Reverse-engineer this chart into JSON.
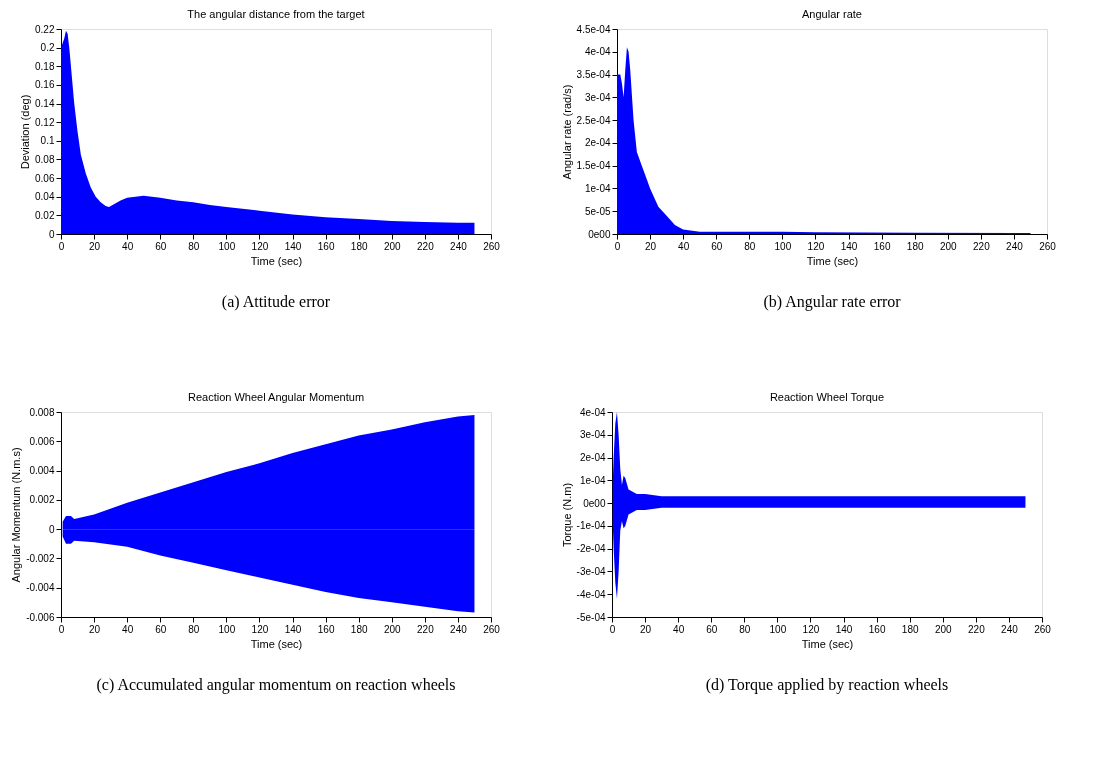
{
  "chart_data": [
    {
      "type": "area",
      "title": "The angular distance from the target",
      "xlabel": "Time (sec)",
      "ylabel": "Deviation (deg)",
      "annotations": [
        "(a) Attitude error"
      ],
      "xlim": [
        0,
        260
      ],
      "xticks": [
        0,
        20,
        40,
        60,
        80,
        100,
        120,
        140,
        160,
        180,
        200,
        220,
        240,
        260
      ],
      "ylim": [
        0,
        0.22
      ],
      "yticks": [
        0,
        0.02,
        0.04,
        0.06,
        0.08,
        0.1,
        0.12,
        0.14,
        0.16,
        0.18,
        0.2,
        0.22
      ],
      "grid": false,
      "series": [
        {
          "color": "#0000ff",
          "x": [
            0,
            1,
            2,
            3,
            4,
            5,
            6,
            8,
            10,
            12,
            15,
            18,
            21,
            24,
            27,
            29,
            32,
            36,
            40,
            45,
            50,
            55,
            60,
            70,
            80,
            90,
            100,
            120,
            140,
            160,
            180,
            200,
            220,
            240,
            250
          ],
          "values": [
            0.2,
            0.205,
            0.21,
            0.218,
            0.215,
            0.2,
            0.18,
            0.14,
            0.11,
            0.085,
            0.065,
            0.05,
            0.04,
            0.034,
            0.03,
            0.029,
            0.032,
            0.036,
            0.039,
            0.04,
            0.041,
            0.04,
            0.039,
            0.036,
            0.034,
            0.031,
            0.029,
            0.025,
            0.021,
            0.018,
            0.016,
            0.014,
            0.013,
            0.012,
            0.012
          ]
        }
      ]
    },
    {
      "type": "area",
      "title": "Angular rate",
      "xlabel": "Time (sec)",
      "ylabel": "Angular rate (rad/s)",
      "annotations": [
        "(b) Angular rate error"
      ],
      "xlim": [
        0,
        260
      ],
      "xticks": [
        0,
        20,
        40,
        60,
        80,
        100,
        120,
        140,
        160,
        180,
        200,
        220,
        240,
        260
      ],
      "ylim": [
        0,
        0.00045
      ],
      "yticks": [
        {
          "value": 0,
          "label": "0e00"
        },
        {
          "value": 5e-05,
          "label": "5e-05"
        },
        {
          "value": 0.0001,
          "label": "1e-04"
        },
        {
          "value": 0.00015,
          "label": "1.5e-04"
        },
        {
          "value": 0.0002,
          "label": "2e-04"
        },
        {
          "value": 0.00025,
          "label": "2.5e-04"
        },
        {
          "value": 0.0003,
          "label": "3e-04"
        },
        {
          "value": 0.00035,
          "label": "3.5e-04"
        },
        {
          "value": 0.0004,
          "label": "4e-04"
        },
        {
          "value": 0.00045,
          "label": "4.5e-04"
        }
      ],
      "grid": false,
      "series": [
        {
          "color": "#0000ff",
          "x": [
            0,
            2,
            3,
            4,
            5,
            6,
            7,
            8,
            10,
            12,
            15,
            18,
            20,
            25,
            30,
            35,
            40,
            50,
            60,
            100,
            120,
            180,
            250
          ],
          "values": [
            0.00035,
            0.00035,
            0.00033,
            0.0003,
            0.00036,
            0.00041,
            0.0004,
            0.00036,
            0.00025,
            0.00018,
            0.00015,
            0.00012,
            0.0001,
            6e-05,
            4e-05,
            2e-05,
            1e-05,
            5e-06,
            5e-06,
            5e-06,
            4e-06,
            3e-06,
            2e-06
          ]
        }
      ]
    },
    {
      "type": "area",
      "title": "Reaction Wheel Angular Momentum",
      "xlabel": "Time (sec)",
      "ylabel": "Angular Momentum (N.m.s)",
      "annotations": [
        "(c) Accumulated angular momentum on reaction wheels"
      ],
      "xlim": [
        0,
        260
      ],
      "xticks": [
        0,
        20,
        40,
        60,
        80,
        100,
        120,
        140,
        160,
        180,
        200,
        220,
        240,
        260
      ],
      "ylim": [
        -0.006,
        0.008
      ],
      "yticks": [
        -0.006,
        -0.004,
        -0.002,
        0,
        0.002,
        0.004,
        0.006,
        0.008
      ],
      "grid": false,
      "series": [
        {
          "color": "#0000ff",
          "x": [
            1,
            3,
            6,
            8,
            20,
            40,
            60,
            80,
            100,
            120,
            140,
            160,
            180,
            200,
            220,
            240,
            250
          ],
          "values": [
            0.0005,
            0.0009,
            0.0009,
            0.0007,
            0.001,
            0.0018,
            0.0025,
            0.0032,
            0.0039,
            0.0045,
            0.0052,
            0.0058,
            0.0064,
            0.0068,
            0.0073,
            0.0077,
            0.0078
          ]
        },
        {
          "color": "#0000ff",
          "x": [
            1,
            3,
            6,
            8,
            20,
            40,
            60,
            80,
            100,
            120,
            140,
            160,
            180,
            200,
            220,
            240,
            250
          ],
          "values": [
            -0.0005,
            -0.001,
            -0.001,
            -0.0008,
            -0.0009,
            -0.0012,
            -0.0018,
            -0.0023,
            -0.0028,
            -0.0033,
            -0.0038,
            -0.0043,
            -0.0047,
            -0.005,
            -0.0053,
            -0.0056,
            -0.0057
          ]
        }
      ]
    },
    {
      "type": "area",
      "title": "Reaction Wheel Torque",
      "xlabel": "Time (sec)",
      "ylabel": "Torque (N.m)",
      "annotations": [
        "(d) Torque applied by reaction wheels"
      ],
      "xlim": [
        0,
        260
      ],
      "xticks": [
        0,
        20,
        40,
        60,
        80,
        100,
        120,
        140,
        160,
        180,
        200,
        220,
        240,
        260
      ],
      "ylim": [
        -0.0005,
        0.0004
      ],
      "yticks": [
        {
          "value": -0.0005,
          "label": "-5e-04"
        },
        {
          "value": -0.0004,
          "label": "-4e-04"
        },
        {
          "value": -0.0003,
          "label": "-3e-04"
        },
        {
          "value": -0.0002,
          "label": "-2e-04"
        },
        {
          "value": -0.0001,
          "label": "-1e-04"
        },
        {
          "value": 0,
          "label": "0e00"
        },
        {
          "value": 0.0001,
          "label": "1e-04"
        },
        {
          "value": 0.0002,
          "label": "2e-04"
        },
        {
          "value": 0.0003,
          "label": "3e-04"
        },
        {
          "value": 0.0004,
          "label": "4e-04"
        }
      ],
      "grid": false,
      "series": [
        {
          "color": "#0000ff",
          "x": [
            0.5,
            1,
            2,
            3,
            4,
            5,
            6,
            7,
            8,
            10,
            15,
            20,
            30,
            250
          ],
          "values": [
            0.0001,
            0.0002,
            0.00035,
            0.0004,
            0.0003,
            0.00015,
            8e-05,
            0.00012,
            0.00011,
            6e-05,
            4e-05,
            4e-05,
            3e-05,
            3e-05
          ]
        },
        {
          "color": "#0000ff",
          "x": [
            0.5,
            1,
            2,
            3,
            4,
            5,
            6,
            7,
            8,
            10,
            15,
            20,
            30,
            250
          ],
          "values": [
            -0.0001,
            -0.0002,
            -0.00035,
            -0.00042,
            -0.0003,
            -0.00012,
            -8e-05,
            -0.00011,
            -0.0001,
            -5e-05,
            -3e-05,
            -3e-05,
            -2e-05,
            -2e-05
          ]
        }
      ]
    }
  ]
}
